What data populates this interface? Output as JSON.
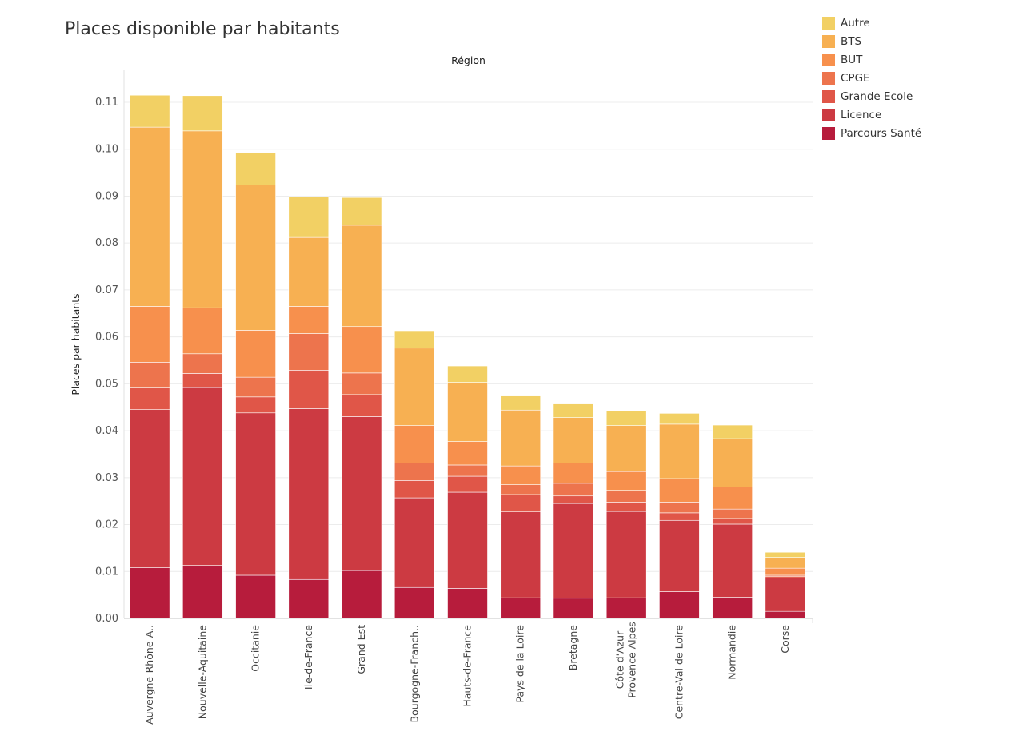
{
  "chart_data": {
    "type": "bar",
    "stacked": true,
    "title": "Places disponible par habitants",
    "header": "Région",
    "ylabel": "Places par habitants",
    "ylim": [
      0,
      0.117
    ],
    "yticks": [
      "0.00",
      "0.01",
      "0.02",
      "0.03",
      "0.04",
      "0.05",
      "0.06",
      "0.07",
      "0.08",
      "0.09",
      "0.10",
      "0.11"
    ],
    "grid": true,
    "legend_position": "top-right",
    "categories": [
      [
        "Auvergne-Rhône-A.."
      ],
      [
        "Nouvelle-Aquitaine"
      ],
      [
        "Occitanie"
      ],
      [
        "Ile-de-France"
      ],
      [
        "Grand Est"
      ],
      [
        "Bourgogne-Franch.."
      ],
      [
        "Hauts-de-France"
      ],
      [
        "Pays de la Loire"
      ],
      [
        "Bretagne"
      ],
      [
        "Provence Alpes",
        "Côte d'Azur"
      ],
      [
        "Centre-Val de Loire"
      ],
      [
        "Normandie"
      ],
      [
        "Corse"
      ]
    ],
    "series": [
      {
        "name": "Parcours Santé",
        "color": "#b71c3c",
        "values": [
          0.0108,
          0.0113,
          0.0092,
          0.0083,
          0.0102,
          0.0066,
          0.0064,
          0.0044,
          0.0043,
          0.0044,
          0.0057,
          0.0045,
          0.0015
        ]
      },
      {
        "name": "Licence",
        "color": "#cc3a42",
        "values": [
          0.0337,
          0.0379,
          0.0346,
          0.0364,
          0.0328,
          0.0191,
          0.0205,
          0.0183,
          0.0202,
          0.0184,
          0.0152,
          0.0156,
          0.0071
        ]
      },
      {
        "name": "Grande Ecole",
        "color": "#e05648",
        "values": [
          0.0046,
          0.003,
          0.0034,
          0.0082,
          0.0047,
          0.0037,
          0.0034,
          0.0037,
          0.0016,
          0.002,
          0.0016,
          0.0012,
          0.0003
        ]
      },
      {
        "name": "CPGE",
        "color": "#ed744d",
        "values": [
          0.0055,
          0.0042,
          0.0042,
          0.0078,
          0.0046,
          0.0037,
          0.0024,
          0.0021,
          0.0027,
          0.0025,
          0.0023,
          0.002,
          0.0003
        ]
      },
      {
        "name": "BUT",
        "color": "#f7904d",
        "values": [
          0.0119,
          0.0098,
          0.01,
          0.0058,
          0.0099,
          0.008,
          0.005,
          0.004,
          0.0043,
          0.004,
          0.005,
          0.0047,
          0.0015
        ]
      },
      {
        "name": "BTS",
        "color": "#f7b052",
        "values": [
          0.0382,
          0.0377,
          0.031,
          0.0147,
          0.0216,
          0.0165,
          0.0126,
          0.0119,
          0.0097,
          0.0098,
          0.0116,
          0.0103,
          0.0023
        ]
      },
      {
        "name": "Autre",
        "color": "#f2d064",
        "values": [
          0.0068,
          0.0075,
          0.0069,
          0.0087,
          0.0059,
          0.0037,
          0.0035,
          0.003,
          0.0029,
          0.0031,
          0.0023,
          0.0029,
          0.0011
        ]
      }
    ]
  }
}
